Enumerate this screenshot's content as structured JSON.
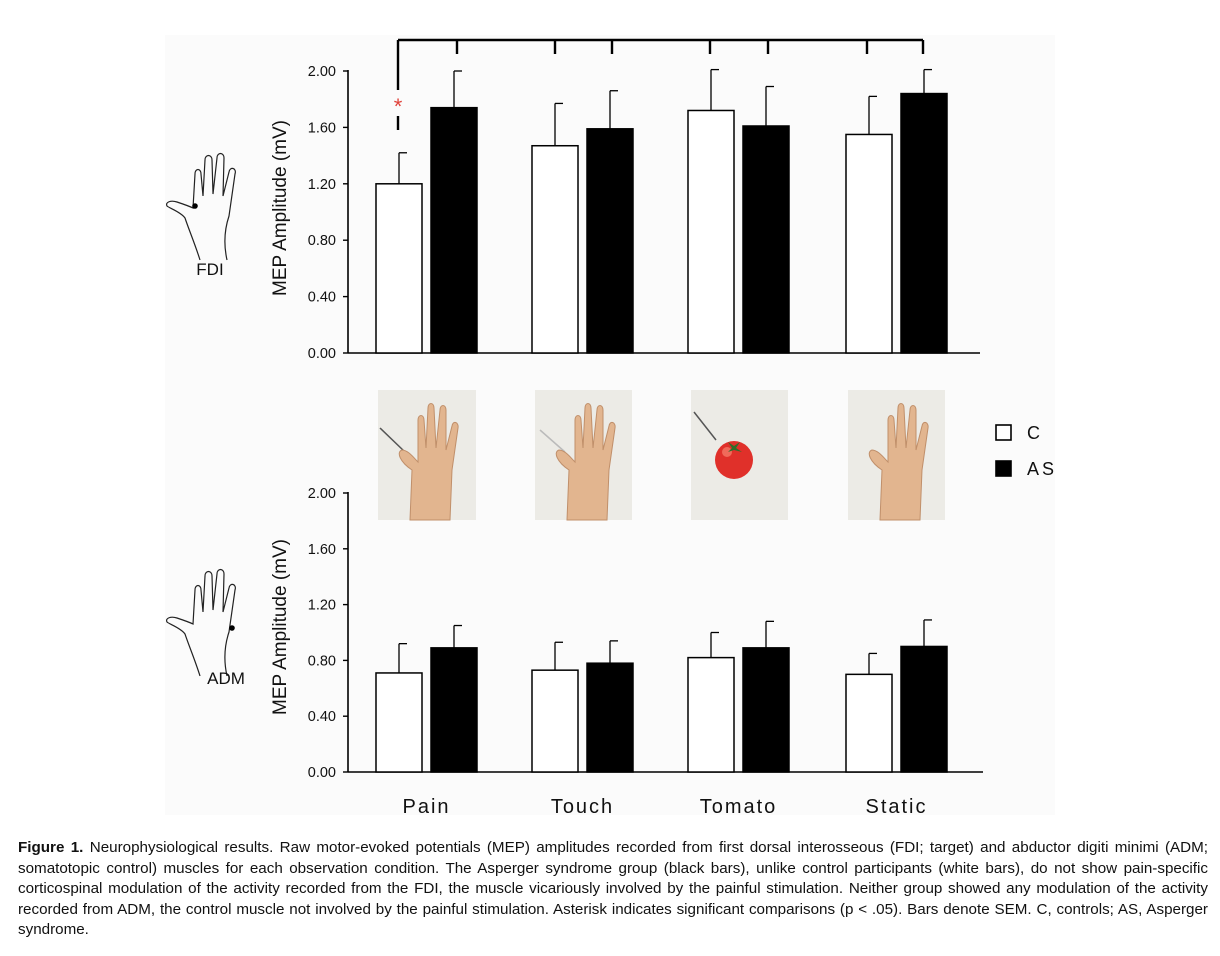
{
  "figure": {
    "panels": [
      {
        "muscle_label": "FDI",
        "ylabel": "MEP Amplitude (mV)"
      },
      {
        "muscle_label": "ADM",
        "ylabel": "MEP Amplitude (mV)"
      }
    ],
    "legend": [
      {
        "label": "C",
        "color": "#ffffff"
      },
      {
        "label": "AS",
        "color": "#000000"
      }
    ],
    "significance_marker": "*",
    "significance_color": "#e0423a"
  },
  "chart_data": [
    {
      "type": "bar",
      "panel": "FDI",
      "categories": [
        "Pain",
        "Touch",
        "Tomato",
        "Static"
      ],
      "ylabel": "MEP Amplitude (mV)",
      "ylim": [
        0,
        2.0
      ],
      "yticks": [
        "0.00",
        "0.40",
        "0.80",
        "1.20",
        "1.60",
        "2.00"
      ],
      "series": [
        {
          "name": "C",
          "color": "#ffffff",
          "values": [
            1.2,
            1.47,
            1.72,
            1.55
          ],
          "sem": [
            0.22,
            0.3,
            0.29,
            0.27
          ]
        },
        {
          "name": "AS",
          "color": "#000000",
          "values": [
            1.74,
            1.59,
            1.61,
            1.84
          ],
          "sem": [
            0.26,
            0.27,
            0.28,
            0.17
          ]
        }
      ],
      "annotations": [
        {
          "text": "*",
          "category": "Pain",
          "series": "C"
        }
      ],
      "comparison_bracket": true,
      "legend": "right"
    },
    {
      "type": "bar",
      "panel": "ADM",
      "categories": [
        "Pain",
        "Touch",
        "Tomato",
        "Static"
      ],
      "ylabel": "MEP Amplitude (mV)",
      "ylim": [
        0,
        2.0
      ],
      "yticks": [
        "0.00",
        "0.40",
        "0.80",
        "1.20",
        "1.60",
        "2.00"
      ],
      "series": [
        {
          "name": "C",
          "color": "#ffffff",
          "values": [
            0.71,
            0.73,
            0.82,
            0.7
          ],
          "sem": [
            0.21,
            0.2,
            0.18,
            0.15
          ]
        },
        {
          "name": "AS",
          "color": "#000000",
          "values": [
            0.89,
            0.78,
            0.89,
            0.9
          ],
          "sem": [
            0.16,
            0.16,
            0.19,
            0.19
          ]
        }
      ],
      "legend": "right"
    }
  ],
  "caption": {
    "label": "Figure 1.",
    "text": " Neurophysiological results. Raw motor-evoked potentials (MEP) amplitudes recorded from first dorsal interosseous (FDI; target) and abductor digiti minimi (ADM; somatotopic control) muscles for each observation condition. The Asperger syndrome group (black bars), unlike control participants (white bars), do not show pain-specific corticospinal modulation of the activity recorded from the FDI, the muscle vicariously involved by the painful stimulation. Neither group showed any modulation of the activity recorded from ADM, the control muscle not involved by the painful stimulation. Asterisk indicates significant comparisons (p < .05). Bars denote SEM. C, controls; AS, Asperger syndrome."
  }
}
